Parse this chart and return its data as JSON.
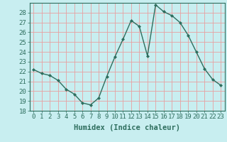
{
  "x": [
    0,
    1,
    2,
    3,
    4,
    5,
    6,
    7,
    8,
    9,
    10,
    11,
    12,
    13,
    14,
    15,
    16,
    17,
    18,
    19,
    20,
    21,
    22,
    23
  ],
  "y": [
    22.2,
    21.8,
    21.6,
    21.1,
    20.2,
    19.7,
    18.8,
    18.6,
    19.3,
    21.5,
    23.5,
    25.3,
    27.2,
    26.6,
    23.6,
    28.8,
    28.1,
    27.7,
    27.0,
    25.7,
    24.0,
    22.3,
    21.2,
    20.6
  ],
  "line_color": "#2e6e5e",
  "marker": "D",
  "marker_size": 2.0,
  "bg_color": "#c8eef0",
  "grid_color": "#e8a0a0",
  "xlabel": "Humidex (Indice chaleur)",
  "xlim": [
    -0.5,
    23.5
  ],
  "ylim": [
    18,
    29
  ],
  "yticks": [
    18,
    19,
    20,
    21,
    22,
    23,
    24,
    25,
    26,
    27,
    28
  ],
  "xticks": [
    0,
    1,
    2,
    3,
    4,
    5,
    6,
    7,
    8,
    9,
    10,
    11,
    12,
    13,
    14,
    15,
    16,
    17,
    18,
    19,
    20,
    21,
    22,
    23
  ],
  "xlabel_fontsize": 7.5,
  "tick_fontsize": 6.5,
  "line_width": 1.0
}
